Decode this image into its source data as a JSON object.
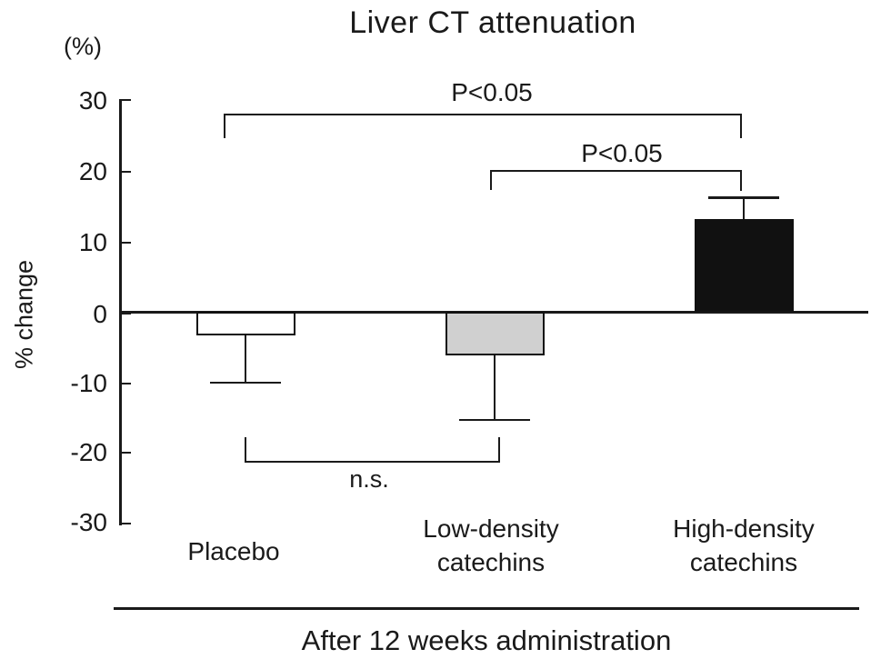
{
  "title": "Liver CT attenuation",
  "y_axis_unit": "(%)",
  "y_axis_label": "% change",
  "x_axis_caption": "After 12 weeks administration",
  "annotations": {
    "sig_top": "P<0.05",
    "sig_mid": "P<0.05",
    "sig_bottom": "n.s."
  },
  "colors": {
    "foreground": "#1a1a1a",
    "placebo_bar": "#ffffff",
    "low_density_bar": "#d0d0d0",
    "high_density_bar": "#111111"
  },
  "chart_data": {
    "type": "bar",
    "title": "Liver CT attenuation",
    "categories": [
      "Placebo",
      "Low-density catechins",
      "High-density catechins"
    ],
    "category_labels": [
      [
        "Placebo"
      ],
      [
        "Low-density",
        "catechins"
      ],
      [
        "High-density",
        "catechins"
      ]
    ],
    "values": [
      -3.3,
      -6.2,
      13.2
    ],
    "error_bars": {
      "style": "one-sided",
      "endpoints": [
        -10.0,
        -15.4,
        16.2
      ],
      "magnitudes": [
        6.7,
        9.2,
        3.0
      ]
    },
    "bar_colors": [
      "#ffffff",
      "#d0d0d0",
      "#111111"
    ],
    "xlabel": "After 12 weeks administration",
    "ylabel": "% change",
    "ylim": [
      -30,
      30
    ],
    "yticks": [
      30,
      20,
      10,
      0,
      -10,
      -20,
      -30
    ],
    "grid": false,
    "legend": false,
    "significance": [
      {
        "between": [
          "Placebo",
          "High-density catechins"
        ],
        "label": "P<0.05"
      },
      {
        "between": [
          "Low-density catechins",
          "High-density catechins"
        ],
        "label": "P<0.05"
      },
      {
        "between": [
          "Placebo",
          "Low-density catechins"
        ],
        "label": "n.s."
      }
    ]
  }
}
